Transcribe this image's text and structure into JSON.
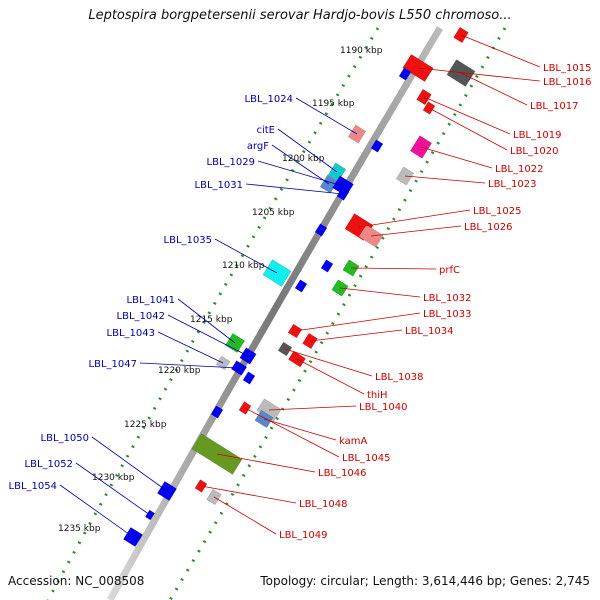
{
  "title": "Leptospira borgpetersenii serovar Hardjo-bovis L550 chromoso...",
  "footer": {
    "accession": "Accession: NC_008508",
    "summary": "Topology: circular; Length: 3,614,446 bp; Genes: 2,745"
  },
  "colors": {
    "backbone": "#8c8c8c",
    "forward_label": "#cc0000",
    "reverse_label": "#0000aa",
    "tick_dot": "#2e8b2e"
  },
  "kbp_ticks": [
    "1190 kbp",
    "1195 kbp",
    "1200 kbp",
    "1205 kbp",
    "1210 kbp",
    "1215 kbp",
    "1220 kbp",
    "1225 kbp",
    "1230 kbp",
    "1235 kbp"
  ],
  "genes_forward": [
    {
      "label": "LBL_1015",
      "color": "#ee1111"
    },
    {
      "label": "LBL_1016",
      "color": "#ee1111"
    },
    {
      "label": "LBL_1017",
      "color": "#555555"
    },
    {
      "label": "LBL_1019",
      "color": "#ee1111"
    },
    {
      "label": "LBL_1020",
      "color": "#ee1111"
    },
    {
      "label": "LBL_1022",
      "color": "#ee1199"
    },
    {
      "label": "LBL_1023",
      "color": "#bbbbbb"
    },
    {
      "label": "LBL_1025",
      "color": "#ee1111"
    },
    {
      "label": "LBL_1026",
      "color": "#ee8888"
    },
    {
      "label": "prfC",
      "color": "#22bb22"
    },
    {
      "label": "LBL_1032",
      "color": "#22bb22"
    },
    {
      "label": "LBL_1033",
      "color": "#ee1111"
    },
    {
      "label": "LBL_1034",
      "color": "#ee1111"
    },
    {
      "label": "LBL_1038",
      "color": "#555555"
    },
    {
      "label": "thiH",
      "color": "#ee1111"
    },
    {
      "label": "LBL_1040",
      "color": "#bbbbbb"
    },
    {
      "label": "kamA",
      "color": "#5588cc"
    },
    {
      "label": "LBL_1045",
      "color": "#ee1111"
    },
    {
      "label": "LBL_1046",
      "color": "#669922"
    },
    {
      "label": "LBL_1048",
      "color": "#ee1111"
    },
    {
      "label": "LBL_1049",
      "color": "#bbbbbb"
    }
  ],
  "genes_reverse": [
    {
      "label": "LBL_1024",
      "color": "#ee8888"
    },
    {
      "label": "citE",
      "color": "#11cccc"
    },
    {
      "label": "argF",
      "color": "#5588cc"
    },
    {
      "label": "LBL_1029",
      "color": "#0000ee"
    },
    {
      "label": "LBL_1031",
      "color": "#0000ee"
    },
    {
      "label": "LBL_1035",
      "color": "#11eeee"
    },
    {
      "label": "LBL_1041",
      "color": "#22bb22"
    },
    {
      "label": "LBL_1042",
      "color": "#0000ee"
    },
    {
      "label": "LBL_1043",
      "color": "#bbbbbb"
    },
    {
      "label": "LBL_1047",
      "color": "#0000ee"
    },
    {
      "label": "LBL_1050",
      "color": "#0000ee"
    },
    {
      "label": "LBL_1052",
      "color": "#0000ee"
    },
    {
      "label": "LBL_1054",
      "color": "#0000ee"
    }
  ]
}
